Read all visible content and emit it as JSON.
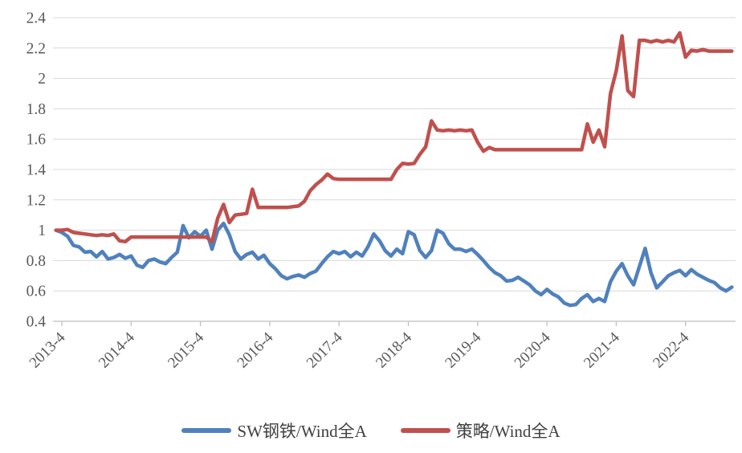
{
  "chart_data": {
    "type": "line",
    "title": "",
    "grid": "horizontal-only",
    "legend_position": "bottom",
    "x": {
      "start_month": "2013-03",
      "end_month": "2022-12",
      "tick_labels": [
        "2013-4",
        "2014-4",
        "2015-4",
        "2016-4",
        "2017-4",
        "2018-4",
        "2019-4",
        "2020-4",
        "2021-4",
        "2022-4"
      ],
      "tick_month_indices": [
        1,
        13,
        25,
        37,
        49,
        61,
        73,
        85,
        97,
        109
      ]
    },
    "y": {
      "min": 0.4,
      "max": 2.4,
      "tick_step": 0.2,
      "tick_values": [
        0.4,
        0.6,
        0.8,
        1.0,
        1.2,
        1.4,
        1.6,
        1.8,
        2.0,
        2.2,
        2.4
      ],
      "tick_labels": [
        "0.4",
        "0.6",
        "0.8",
        "1",
        "1.2",
        "1.4",
        "1.6",
        "1.8",
        "2",
        "2.2",
        "2.4"
      ]
    },
    "series": [
      {
        "key": "sw-steel",
        "name": "SW钢铁/Wind全A",
        "color": "#4F81BD",
        "values": [
          1.0,
          0.985,
          0.96,
          0.9,
          0.89,
          0.855,
          0.86,
          0.825,
          0.86,
          0.81,
          0.82,
          0.84,
          0.815,
          0.83,
          0.77,
          0.755,
          0.8,
          0.81,
          0.79,
          0.78,
          0.82,
          0.855,
          1.03,
          0.95,
          0.99,
          0.96,
          1.0,
          0.875,
          1.0,
          1.045,
          0.97,
          0.86,
          0.81,
          0.84,
          0.855,
          0.81,
          0.835,
          0.78,
          0.745,
          0.7,
          0.68,
          0.695,
          0.705,
          0.69,
          0.715,
          0.73,
          0.78,
          0.825,
          0.86,
          0.845,
          0.86,
          0.825,
          0.855,
          0.83,
          0.89,
          0.975,
          0.93,
          0.865,
          0.83,
          0.875,
          0.845,
          0.99,
          0.97,
          0.865,
          0.82,
          0.865,
          1.0,
          0.98,
          0.91,
          0.875,
          0.875,
          0.86,
          0.875,
          0.84,
          0.8,
          0.755,
          0.72,
          0.7,
          0.665,
          0.67,
          0.69,
          0.665,
          0.64,
          0.6,
          0.575,
          0.61,
          0.58,
          0.56,
          0.52,
          0.505,
          0.51,
          0.55,
          0.575,
          0.53,
          0.55,
          0.53,
          0.66,
          0.73,
          0.78,
          0.7,
          0.64,
          0.76,
          0.88,
          0.72,
          0.62,
          0.66,
          0.7,
          0.72,
          0.735,
          0.7,
          0.74,
          0.71,
          0.69,
          0.67,
          0.655,
          0.62,
          0.6,
          0.625
        ]
      },
      {
        "key": "strategy",
        "name": "策略/Wind全A",
        "color": "#C0504D",
        "values": [
          1.0,
          1.0,
          1.005,
          0.985,
          0.98,
          0.975,
          0.97,
          0.965,
          0.97,
          0.965,
          0.975,
          0.93,
          0.925,
          0.955,
          0.955,
          0.955,
          0.955,
          0.955,
          0.955,
          0.955,
          0.955,
          0.955,
          0.955,
          0.955,
          0.955,
          0.955,
          0.955,
          0.925,
          1.08,
          1.17,
          1.05,
          1.1,
          1.105,
          1.11,
          1.27,
          1.15,
          1.15,
          1.15,
          1.15,
          1.15,
          1.15,
          1.155,
          1.16,
          1.19,
          1.26,
          1.3,
          1.33,
          1.37,
          1.34,
          1.335,
          1.335,
          1.335,
          1.335,
          1.335,
          1.335,
          1.335,
          1.335,
          1.335,
          1.335,
          1.4,
          1.44,
          1.435,
          1.44,
          1.5,
          1.55,
          1.72,
          1.66,
          1.655,
          1.66,
          1.655,
          1.66,
          1.655,
          1.66,
          1.58,
          1.52,
          1.545,
          1.53,
          1.53,
          1.53,
          1.53,
          1.53,
          1.53,
          1.53,
          1.53,
          1.53,
          1.53,
          1.53,
          1.53,
          1.53,
          1.53,
          1.53,
          1.53,
          1.7,
          1.58,
          1.66,
          1.55,
          1.9,
          2.05,
          2.28,
          1.92,
          1.88,
          2.25,
          2.25,
          2.24,
          2.25,
          2.24,
          2.25,
          2.24,
          2.3,
          2.14,
          2.185,
          2.18,
          2.19,
          2.18,
          2.18,
          2.18,
          2.18,
          2.18
        ]
      }
    ]
  },
  "colors": {
    "grid": "#d9d9d9",
    "axis": "#bfbfbf",
    "tick_text": "#595959",
    "legend_text": "#404040",
    "background": "#ffffff"
  }
}
